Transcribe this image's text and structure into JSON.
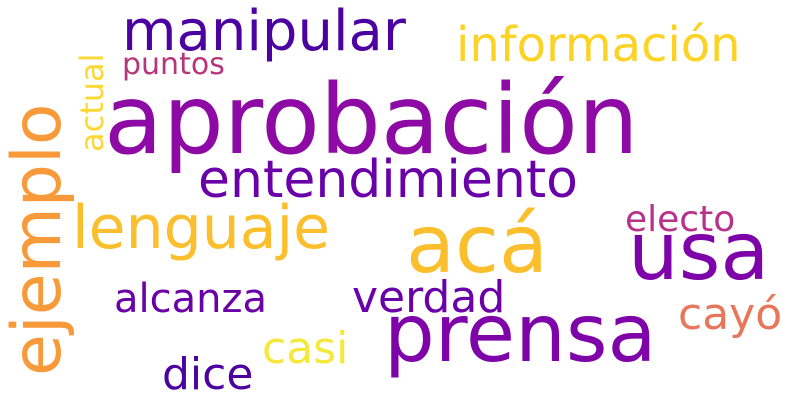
{
  "word_cloud": {
    "background": "#ffffff",
    "words": {
      "aprobacion": {
        "text": "aprobación",
        "color": "#8d0ba4"
      },
      "manipular": {
        "text": "manipular",
        "color": "#4c02a1"
      },
      "informacion": {
        "text": "información",
        "color": "#fcd225"
      },
      "puntos": {
        "text": "puntos",
        "color": "#b5367a"
      },
      "entendimiento": {
        "text": "entendimiento",
        "color": "#6a00a8"
      },
      "lenguaje": {
        "text": "lenguaje",
        "color": "#fbbf2e"
      },
      "aca": {
        "text": "acá",
        "color": "#fbbf2e"
      },
      "usa": {
        "text": "usa",
        "color": "#7e03a8"
      },
      "electo": {
        "text": "electo",
        "color": "#b83289"
      },
      "alcanza": {
        "text": "alcanza",
        "color": "#6a00a8"
      },
      "verdad": {
        "text": "verdad",
        "color": "#6a00a8"
      },
      "prensa": {
        "text": "prensa",
        "color": "#7e03a8"
      },
      "cayo": {
        "text": "cayó",
        "color": "#e8765b"
      },
      "casi": {
        "text": "casi",
        "color": "#f4e93a"
      },
      "dice": {
        "text": "dice",
        "color": "#4c02a1"
      },
      "ejemplo": {
        "text": "ejemplo",
        "color": "#f89a3a"
      },
      "actual": {
        "text": "actual",
        "color": "#fdd835"
      }
    }
  }
}
